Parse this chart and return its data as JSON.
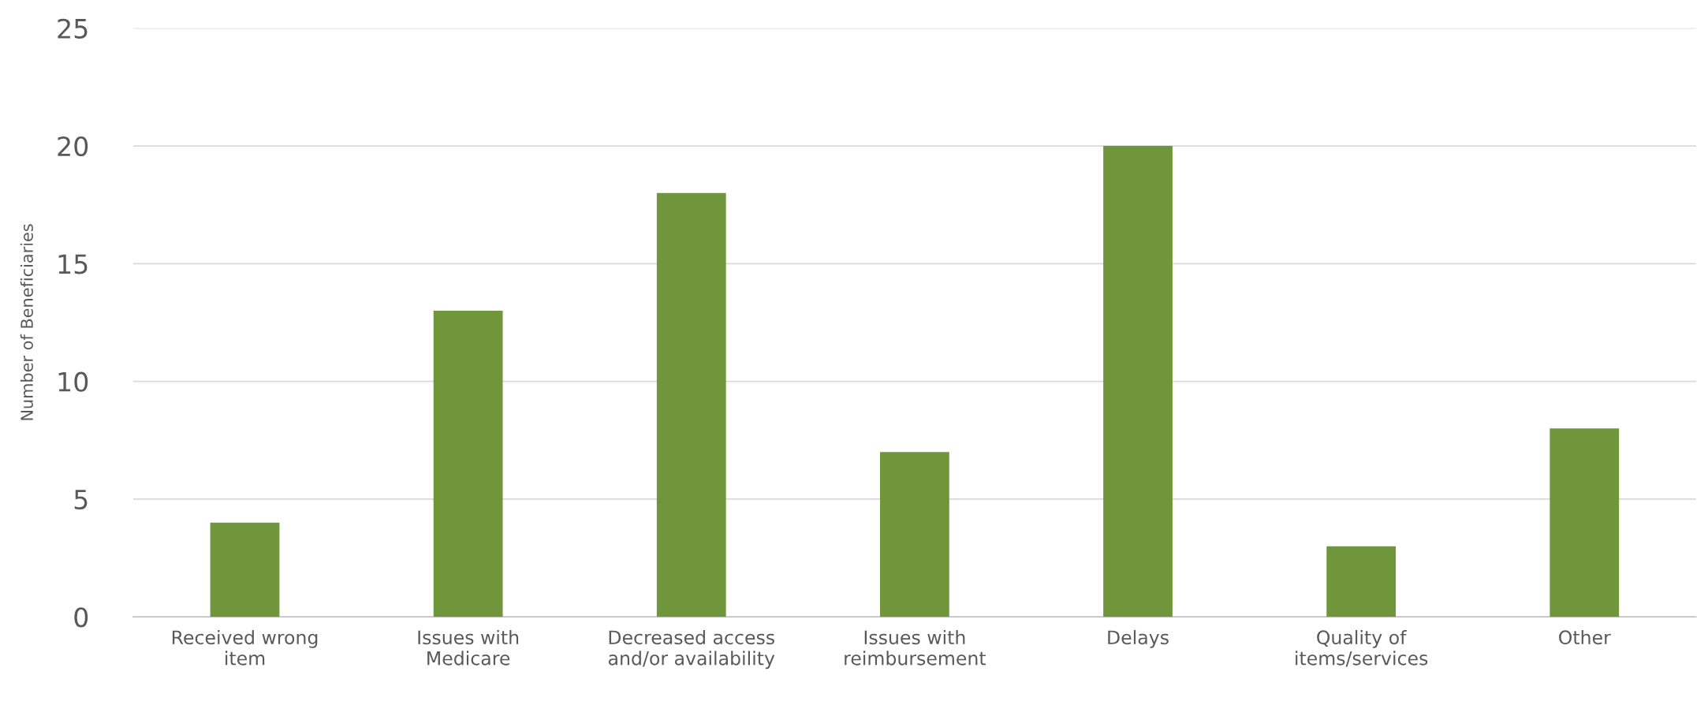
{
  "chart_data": {
    "type": "bar",
    "ylabel": "Number of Beneficiaries",
    "categories": [
      "Received wrong\nitem",
      "Issues with\nMedicare",
      "Decreased access\nand/or availability",
      "Issues with\nreimbursement",
      "Delays",
      "Quality of\nitems/services",
      "Other"
    ],
    "values": [
      4,
      13,
      18,
      7,
      20,
      3,
      8
    ],
    "color": "#70963b",
    "ylim": [
      0,
      25
    ],
    "yticks": [
      0,
      5,
      10,
      15,
      20,
      25
    ],
    "grid": "y"
  }
}
